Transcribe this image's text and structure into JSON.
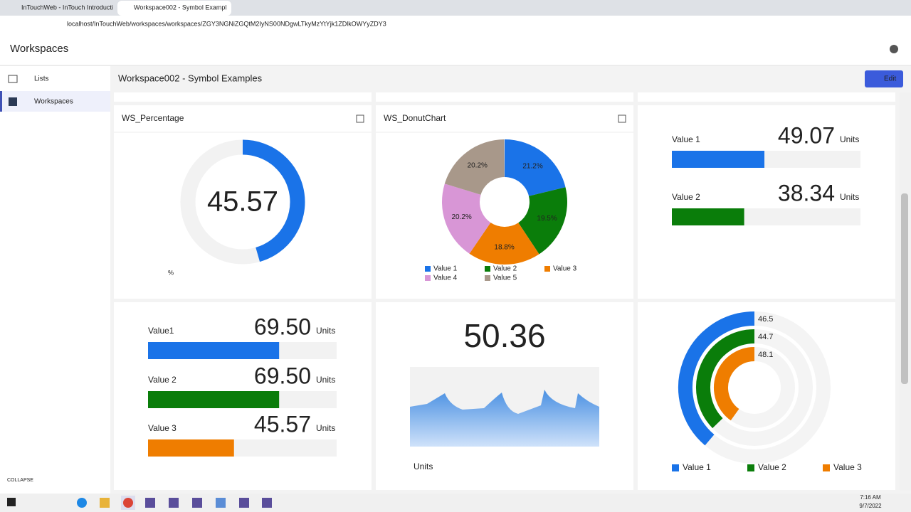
{
  "browser": {
    "tabs": [
      "InTouchWeb - InTouch Introducti",
      "Workspace002 - Symbol Exampl"
    ],
    "url": "localhost/InTouchWeb/workspaces/workspaces/ZGY3NGNiZGQtM2IyNS00NDgwLTkyMzYtYjk1ZDlkOWYyZDY3"
  },
  "app": {
    "title": "Workspaces"
  },
  "sidebar": {
    "items": [
      "Lists",
      "Workspaces"
    ],
    "collapse": "COLLAPSE"
  },
  "workspace": {
    "title": "Workspace002 - Symbol Examples",
    "edit": "Edit"
  },
  "widgets": {
    "percentage": {
      "title": "WS_Percentage",
      "value": 45.57,
      "unit": "%",
      "range": [
        0,
        100
      ],
      "color": "#1a73e8"
    },
    "donut": {
      "title": "WS_DonutChart",
      "range": [
        0,
        100
      ],
      "series": [
        {
          "name": "Value 1",
          "color": "#1a73e8",
          "value": 21.2,
          "value_label": "21.2%"
        },
        {
          "name": "Value 2",
          "color": "#0a7d0a",
          "value": 19.5,
          "value_label": "19.5%"
        },
        {
          "name": "Value 3",
          "color": "#ef7d00",
          "value": 18.8,
          "value_label": "18.8%"
        },
        {
          "name": "Value 4",
          "color": "#d896d6",
          "value": 20.2,
          "value_label": "20.2%"
        },
        {
          "name": "Value 5",
          "color": "#a8988a",
          "value": 20.2,
          "value_label": "20.2%"
        }
      ]
    },
    "bars_a": {
      "range": [
        0,
        100
      ],
      "items": [
        {
          "name": "Value 1",
          "value": 49.07,
          "unit": "Units",
          "color": "#1a73e8"
        },
        {
          "name": "Value 2",
          "value": 38.34,
          "unit": "Units",
          "color": "#0a7d0a"
        }
      ]
    },
    "bars_b": {
      "range": [
        0,
        100
      ],
      "items": [
        {
          "name": "Value1",
          "value": 69.5,
          "value_label": "69.50",
          "unit": "Units",
          "color": "#1a73e8"
        },
        {
          "name": "Value 2",
          "value": 69.5,
          "value_label": "69.50",
          "unit": "Units",
          "color": "#0a7d0a"
        },
        {
          "name": "Value 3",
          "value": 45.57,
          "unit": "Units",
          "color": "#ef7d00"
        }
      ]
    },
    "trend": {
      "value": 50.36,
      "unit": "Units"
    },
    "radial": {
      "range": [
        0,
        100
      ],
      "items": [
        {
          "name": "Value 1",
          "value": 46.5,
          "color": "#1a73e8"
        },
        {
          "name": "Value 2",
          "value": 44.7,
          "color": "#0a7d0a"
        },
        {
          "name": "Value 3",
          "value": 48.1,
          "color": "#ef7d00"
        }
      ]
    }
  },
  "taskbar": {
    "time": "7:16 AM",
    "date": "9/7/2022"
  }
}
